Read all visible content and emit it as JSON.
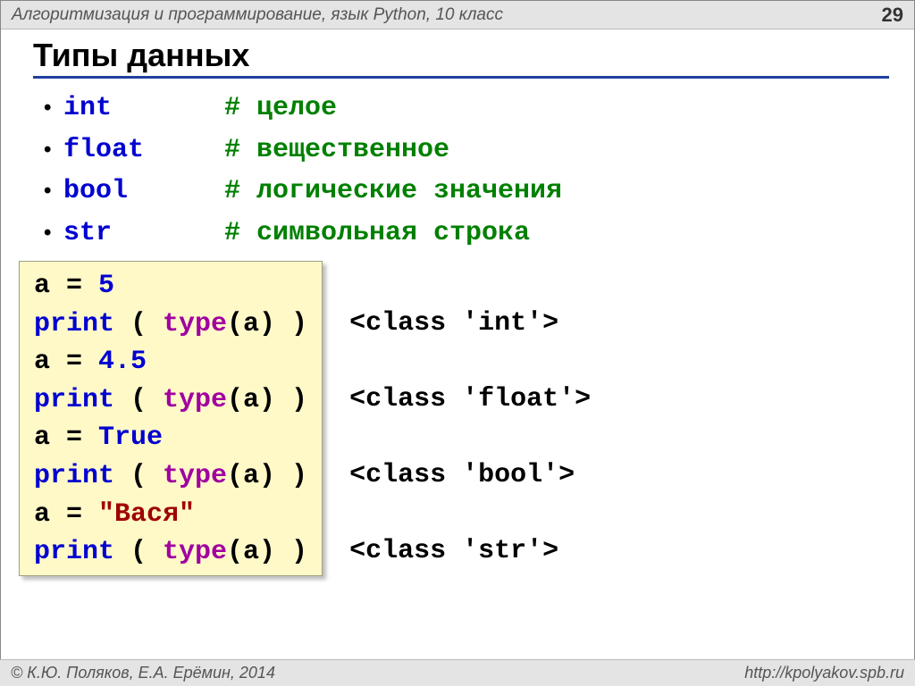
{
  "header": {
    "course": "Алгоритмизация и программирование, язык Python, 10 класс",
    "page": "29"
  },
  "title": "Типы данных",
  "types": [
    {
      "keyword": "int",
      "comment": "# целое"
    },
    {
      "keyword": "float",
      "comment": "# вещественное"
    },
    {
      "keyword": "bool",
      "comment": "# логические значения"
    },
    {
      "keyword": "str",
      "comment": "# символьная строка"
    }
  ],
  "code": {
    "lines": [
      [
        {
          "t": "a",
          "c": "plain"
        },
        {
          "t": " = ",
          "c": "plain"
        },
        {
          "t": "5",
          "c": "num"
        }
      ],
      [
        {
          "t": "print",
          "c": "kw"
        },
        {
          "t": " ( ",
          "c": "plain"
        },
        {
          "t": "type",
          "c": "call"
        },
        {
          "t": "(a) )",
          "c": "plain"
        }
      ],
      [
        {
          "t": "a",
          "c": "plain"
        },
        {
          "t": " = ",
          "c": "plain"
        },
        {
          "t": "4.5",
          "c": "num"
        }
      ],
      [
        {
          "t": "print",
          "c": "kw"
        },
        {
          "t": " ( ",
          "c": "plain"
        },
        {
          "t": "type",
          "c": "call"
        },
        {
          "t": "(a) )",
          "c": "plain"
        }
      ],
      [
        {
          "t": "a",
          "c": "plain"
        },
        {
          "t": " = ",
          "c": "plain"
        },
        {
          "t": "True",
          "c": "kw"
        }
      ],
      [
        {
          "t": "print",
          "c": "kw"
        },
        {
          "t": " ( ",
          "c": "plain"
        },
        {
          "t": "type",
          "c": "call"
        },
        {
          "t": "(a) )",
          "c": "plain"
        }
      ],
      [
        {
          "t": "a",
          "c": "plain"
        },
        {
          "t": " = ",
          "c": "plain"
        },
        {
          "t": "\"Вася\"",
          "c": "str"
        }
      ],
      [
        {
          "t": "print",
          "c": "kw"
        },
        {
          "t": " ( ",
          "c": "plain"
        },
        {
          "t": "type",
          "c": "call"
        },
        {
          "t": "(a) )",
          "c": "plain"
        }
      ]
    ],
    "output": [
      "",
      "<class 'int'>",
      "",
      "<class 'float'>",
      "",
      "<class 'bool'>",
      "",
      "<class 'str'>"
    ]
  },
  "footer": {
    "authors": "© К.Ю. Поляков, Е.А. Ерёмин, 2014",
    "url": "http://kpolyakov.spb.ru"
  },
  "colors": {
    "keyword": "#0000d0",
    "call": "#a000a0",
    "number": "#0000d0",
    "string": "#a00000",
    "comment": "#008000",
    "codebg": "#fff9c8",
    "rule": "#2040a0"
  }
}
